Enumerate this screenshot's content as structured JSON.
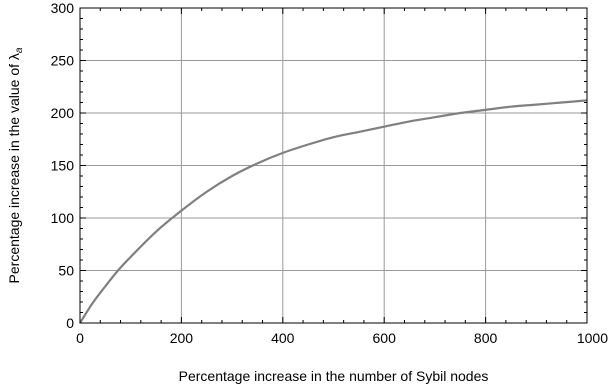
{
  "chart_data": {
    "type": "line",
    "title": "",
    "xlabel": "Percentage increase in the number of Sybil nodes",
    "ylabel_prefix": "Percentage increase in the value of ",
    "ylabel_symbol": "λ",
    "ylabel_subscript": "a",
    "xlim": [
      0,
      1000
    ],
    "ylim": [
      0,
      300
    ],
    "x_ticks": [
      0,
      200,
      400,
      600,
      800,
      1000
    ],
    "x_tick_labels": [
      "0",
      "200",
      "400",
      "600",
      "800",
      "1000"
    ],
    "y_ticks": [
      0,
      50,
      100,
      150,
      200,
      250,
      300
    ],
    "y_tick_labels": [
      "0",
      "50",
      "100",
      "150",
      "200",
      "250",
      "300"
    ],
    "grid": true,
    "line_color": "#808080",
    "grid_color": "#9a9a9a",
    "series": [
      {
        "x": [
          0,
          25,
          50,
          75,
          100,
          150,
          200,
          250,
          300,
          350,
          400,
          450,
          500,
          550,
          600,
          650,
          700,
          750,
          800,
          850,
          900,
          950,
          1000
        ],
        "y": [
          0,
          19,
          35,
          50,
          63,
          87,
          107,
          125,
          140,
          152,
          162,
          170,
          177,
          182,
          187,
          192,
          196,
          200,
          203,
          206,
          208,
          210,
          212
        ]
      }
    ]
  }
}
